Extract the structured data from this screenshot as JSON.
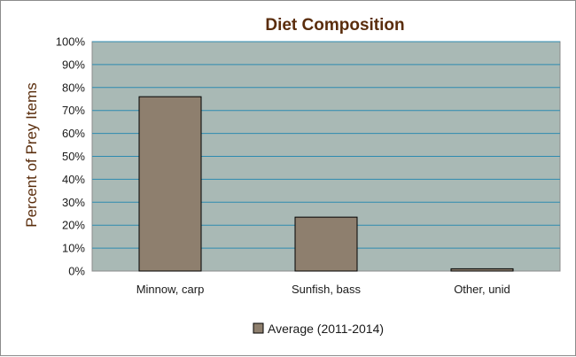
{
  "chart_data": {
    "type": "bar",
    "title": "Diet Composition",
    "xlabel": "",
    "ylabel": "Percent of Prey Items",
    "categories": [
      "Minnow, carp",
      "Sunfish, bass",
      "Other, unid"
    ],
    "series": [
      {
        "name": "Average (2011-2014)",
        "values": [
          76,
          23.5,
          1
        ]
      }
    ],
    "ylim": [
      0,
      100
    ],
    "yticks": [
      "0%",
      "10%",
      "20%",
      "30%",
      "40%",
      "50%",
      "60%",
      "70%",
      "80%",
      "90%",
      "100%"
    ],
    "grid": true,
    "legend": "bottom-center",
    "colors": {
      "plot_background": "#a9b9b5",
      "gridline": "#2e8bb0",
      "bar_fill": "#8e7f6e",
      "bar_stroke": "#000000",
      "title": "#5a2d0c"
    }
  }
}
